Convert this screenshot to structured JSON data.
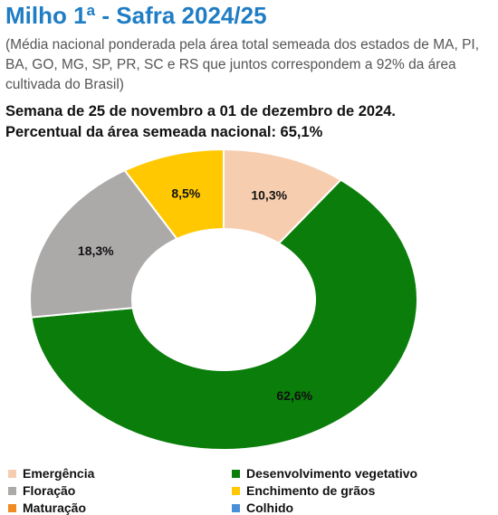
{
  "title": "Milho 1ª - Safra 2024/25",
  "subtitle": "(Média nacional ponderada pela área total semeada dos estados de MA, PI, BA, GO, MG, SP, PR, SC e RS que juntos correspondem a 92% da área cultivada do Brasil)",
  "week": "Semana de 25 de novembro a 01 de dezembro de 2024.",
  "percent_sown": "Percentual da área semeada nacional: 65,1%",
  "chart_data": {
    "type": "pie",
    "subtype": "donut",
    "slices": [
      {
        "name": "Emergência",
        "value": 10.3,
        "label": "10,3%",
        "color": "#f7cdb0"
      },
      {
        "name": "Desenvolvimento vegetativo",
        "value": 62.6,
        "label": "62,6%",
        "color": "#0a7d0a"
      },
      {
        "name": "Floração",
        "value": 18.3,
        "label": "18,3%",
        "color": "#aca9a9"
      },
      {
        "name": "Enchimento de grãos",
        "value": 8.5,
        "label": "8,5%",
        "color": "#ffc800"
      },
      {
        "name": "Maturação",
        "value": 0,
        "label": "",
        "color": "#f08a22"
      },
      {
        "name": "Colhido",
        "value": 0,
        "label": "",
        "color": "#4a90d9"
      }
    ],
    "legend_placement": "bottom"
  },
  "legend": [
    {
      "label": "Emergência",
      "color": "#f7cdb0"
    },
    {
      "label": "Desenvolvimento vegetativo",
      "color": "#0a7d0a"
    },
    {
      "label": "Floração",
      "color": "#aca9a9"
    },
    {
      "label": "Enchimento de grãos",
      "color": "#ffc800"
    },
    {
      "label": "Maturação",
      "color": "#f08a22"
    },
    {
      "label": "Colhido",
      "color": "#4a90d9"
    }
  ]
}
